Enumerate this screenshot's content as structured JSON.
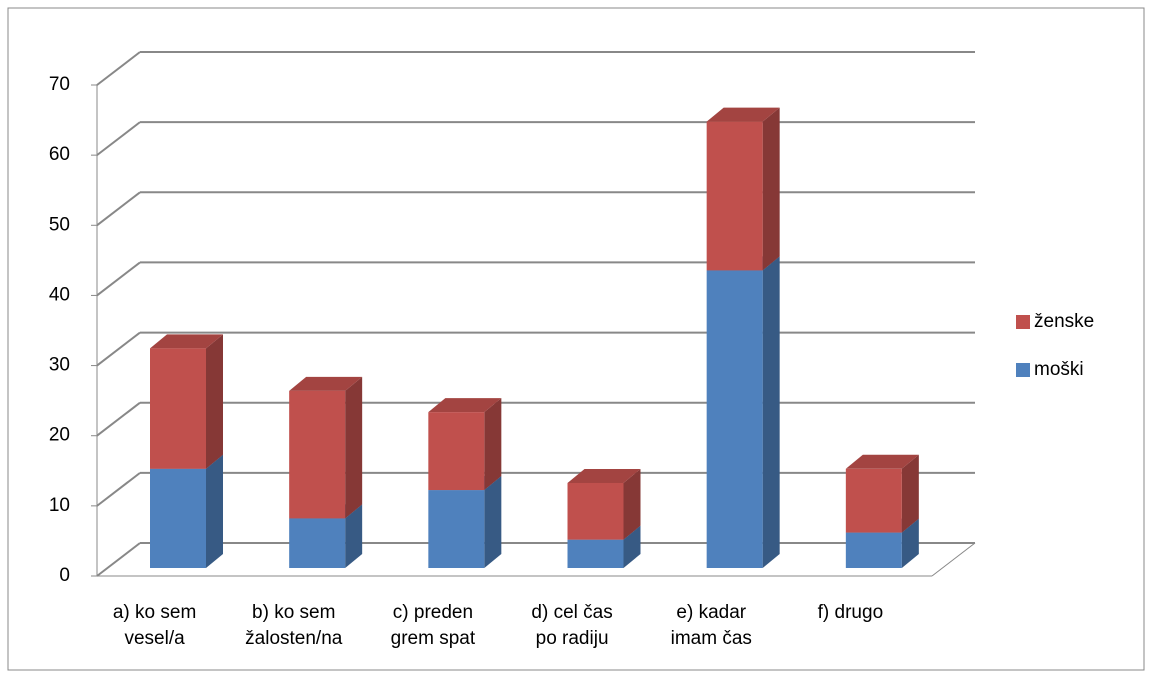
{
  "chart_data": {
    "type": "bar3d_stacked",
    "categories": [
      "a) ko sem\nvesel/a",
      "b) ko sem\nžalosten/na",
      "c) preden\ngrem spat",
      "d) cel čas\npo radiju",
      "e) kadar\nimam čas",
      "f) drugo"
    ],
    "series": [
      {
        "name": "moški",
        "color": "#4f81bd",
        "values": [
          14,
          7,
          11,
          4,
          42,
          5
        ]
      },
      {
        "name": "ženske",
        "color": "#c0504d",
        "values": [
          17,
          18,
          11,
          8,
          21,
          9
        ]
      }
    ],
    "ylim": [
      0,
      70
    ],
    "yticks": [
      0,
      10,
      20,
      30,
      40,
      50,
      60,
      70
    ],
    "grid": true,
    "legend": "right"
  }
}
